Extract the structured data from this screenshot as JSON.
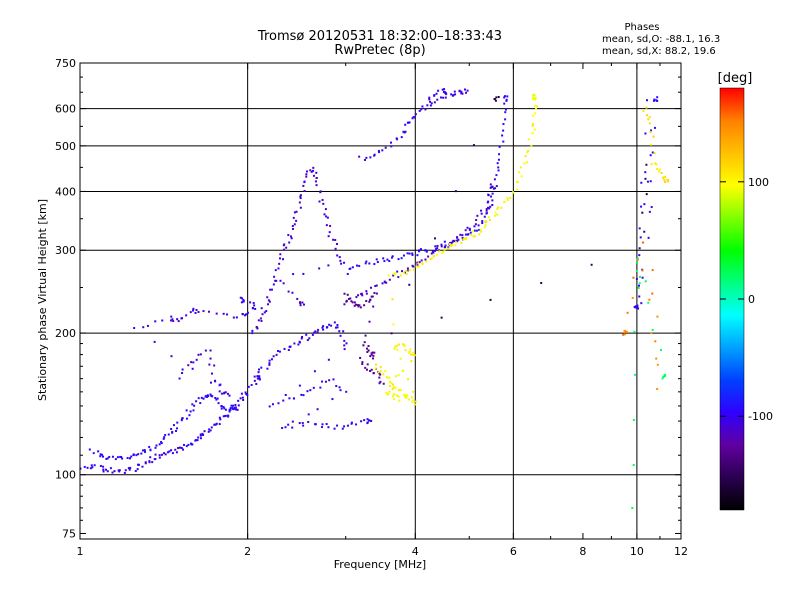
{
  "chart_data": {
    "type": "scatter",
    "title": "Tromsø 20120531 18:32:00–18:33:43",
    "subtitle": "RwPretec (8p)",
    "xlabel": "Frequency [MHz]",
    "ylabel": "Stationary phase Virtual Height [km]",
    "x_scale": "log",
    "y_scale": "log",
    "xlim": [
      1,
      12
    ],
    "ylim": [
      73,
      750
    ],
    "x_ticks": [
      1,
      2,
      4,
      6,
      8,
      10,
      12
    ],
    "y_ticks": [
      75,
      100,
      200,
      300,
      400,
      500,
      600,
      750
    ],
    "grid_x": [
      1,
      2,
      4,
      6,
      10
    ],
    "grid_y": [
      100,
      200,
      300,
      400,
      500,
      600
    ],
    "grid": true,
    "phases_box": {
      "title": "Phases",
      "line1": "mean, sd,O: -88.1, 16.3",
      "line2": "mean, sd,X:  88.2, 19.6"
    },
    "colorbar": {
      "label": "[deg]",
      "range": [
        -180,
        180
      ],
      "ticks": [
        100,
        0,
        -100
      ],
      "colors": [
        "#000000",
        "#2a0050",
        "#6000a0",
        "#3000ff",
        "#0040ff",
        "#00a0ff",
        "#00ffff",
        "#00ff80",
        "#00ff00",
        "#80ff00",
        "#ffff00",
        "#ffc000",
        "#ff8000",
        "#ff0000"
      ]
    },
    "point_color": "phase [deg]",
    "clusters": [
      {
        "phase": -100,
        "pts": [
          [
            1.0,
            102
          ],
          [
            1.05,
            104
          ],
          [
            1.1,
            103
          ],
          [
            1.15,
            102
          ],
          [
            1.2,
            102
          ],
          [
            1.25,
            103
          ],
          [
            1.3,
            105
          ],
          [
            1.35,
            108
          ],
          [
            1.4,
            110
          ],
          [
            1.45,
            111
          ],
          [
            1.5,
            113
          ],
          [
            1.55,
            115
          ],
          [
            1.6,
            118
          ],
          [
            1.65,
            121
          ],
          [
            1.7,
            124
          ],
          [
            1.75,
            127
          ],
          [
            1.8,
            131
          ],
          [
            1.85,
            135
          ],
          [
            1.9,
            140
          ],
          [
            1.95,
            145
          ],
          [
            2.0,
            151
          ],
          [
            2.1,
            160
          ]
        ]
      },
      {
        "phase": -95,
        "pts": [
          [
            1.05,
            112
          ],
          [
            1.1,
            110
          ],
          [
            1.15,
            108
          ],
          [
            1.2,
            108
          ],
          [
            1.25,
            110
          ],
          [
            1.3,
            112
          ],
          [
            1.35,
            114
          ],
          [
            1.4,
            117
          ],
          [
            1.45,
            122
          ],
          [
            1.5,
            127
          ],
          [
            1.55,
            133
          ],
          [
            1.6,
            140
          ],
          [
            1.65,
            146
          ],
          [
            1.7,
            148
          ],
          [
            1.75,
            145
          ],
          [
            1.8,
            140
          ],
          [
            1.85,
            138
          ],
          [
            1.9,
            139
          ]
        ]
      },
      {
        "phase": -105,
        "pts": [
          [
            1.5,
            160
          ],
          [
            1.6,
            175
          ],
          [
            1.7,
            183
          ],
          [
            1.75,
            160
          ],
          [
            1.8,
            150
          ],
          [
            1.85,
            148
          ],
          [
            1.25,
            203
          ],
          [
            1.45,
            215
          ],
          [
            1.5,
            213
          ],
          [
            1.6,
            222
          ],
          [
            1.65,
            225
          ],
          [
            1.9,
            215
          ],
          [
            2.0,
            220
          ],
          [
            2.1,
            228
          ],
          [
            1.95,
            235
          ]
        ]
      },
      {
        "phase": -110,
        "pts": [
          [
            2.05,
            200
          ],
          [
            2.1,
            210
          ],
          [
            2.15,
            225
          ],
          [
            2.2,
            245
          ],
          [
            2.25,
            265
          ],
          [
            2.3,
            290
          ],
          [
            2.35,
            310
          ],
          [
            2.4,
            330
          ],
          [
            2.45,
            360
          ],
          [
            2.5,
            390
          ],
          [
            2.55,
            420
          ],
          [
            2.6,
            450
          ],
          [
            2.65,
            430
          ],
          [
            2.7,
            395
          ],
          [
            2.75,
            360
          ],
          [
            2.8,
            330
          ],
          [
            2.9,
            300
          ],
          [
            2.95,
            280
          ],
          [
            2.3,
            260
          ],
          [
            2.5,
            230
          ]
        ]
      },
      {
        "phase": -100,
        "pts": [
          [
            2.05,
            160
          ],
          [
            2.15,
            170
          ],
          [
            2.25,
            180
          ],
          [
            2.35,
            185
          ],
          [
            2.45,
            190
          ],
          [
            2.55,
            195
          ],
          [
            2.65,
            200
          ],
          [
            2.75,
            205
          ],
          [
            2.85,
            210
          ],
          [
            2.95,
            200
          ],
          [
            3.0,
            185
          ],
          [
            2.2,
            140
          ],
          [
            2.4,
            145
          ],
          [
            2.6,
            150
          ],
          [
            2.8,
            160
          ],
          [
            3.0,
            150
          ],
          [
            2.3,
            125
          ],
          [
            2.5,
            128
          ],
          [
            2.7,
            128
          ],
          [
            2.9,
            126
          ],
          [
            3.1,
            128
          ],
          [
            3.3,
            130
          ]
        ]
      },
      {
        "phase": -95,
        "pts": [
          [
            3.0,
            270
          ],
          [
            3.2,
            280
          ],
          [
            3.4,
            283
          ],
          [
            3.6,
            288
          ],
          [
            3.8,
            292
          ],
          [
            4.0,
            296
          ],
          [
            4.2,
            300
          ],
          [
            4.4,
            305
          ],
          [
            4.6,
            310
          ],
          [
            4.8,
            318
          ],
          [
            5.0,
            325
          ],
          [
            5.2,
            335
          ],
          [
            5.4,
            355
          ],
          [
            5.5,
            385
          ],
          [
            5.6,
            430
          ],
          [
            5.7,
            480
          ],
          [
            5.75,
            560
          ],
          [
            5.8,
            630
          ]
        ]
      },
      {
        "phase": -110,
        "pts": [
          [
            3.0,
            230
          ],
          [
            3.15,
            238
          ],
          [
            3.3,
            245
          ],
          [
            3.5,
            255
          ],
          [
            3.7,
            265
          ],
          [
            3.9,
            275
          ],
          [
            4.1,
            285
          ],
          [
            4.3,
            295
          ],
          [
            4.5,
            305
          ],
          [
            4.7,
            315
          ],
          [
            4.9,
            325
          ],
          [
            5.1,
            340
          ],
          [
            5.3,
            360
          ],
          [
            5.4,
            380
          ],
          [
            5.5,
            410
          ]
        ]
      },
      {
        "phase": -105,
        "pts": [
          [
            3.2,
            470
          ],
          [
            3.4,
            480
          ],
          [
            3.6,
            500
          ],
          [
            3.8,
            530
          ],
          [
            3.9,
            560
          ],
          [
            4.0,
            585
          ],
          [
            4.2,
            610
          ],
          [
            4.4,
            625
          ],
          [
            4.6,
            640
          ],
          [
            4.8,
            650
          ],
          [
            5.0,
            655
          ],
          [
            4.2,
            635
          ],
          [
            4.5,
            652
          ]
        ]
      },
      {
        "phase": -130,
        "pts": [
          [
            3.0,
            240
          ],
          [
            3.1,
            232
          ],
          [
            3.2,
            228
          ],
          [
            3.3,
            235
          ],
          [
            3.4,
            242
          ],
          [
            3.2,
            175
          ],
          [
            3.3,
            168
          ],
          [
            3.4,
            165
          ],
          [
            3.5,
            155
          ],
          [
            3.25,
            190
          ],
          [
            3.35,
            180
          ]
        ]
      },
      {
        "phase": 100,
        "pts": [
          [
            3.4,
            170
          ],
          [
            3.5,
            165
          ],
          [
            3.6,
            158
          ],
          [
            3.7,
            152
          ],
          [
            3.8,
            148
          ],
          [
            3.9,
            145
          ],
          [
            4.0,
            142
          ],
          [
            3.7,
            185
          ],
          [
            3.8,
            188
          ],
          [
            3.9,
            183
          ],
          [
            4.0,
            180
          ],
          [
            3.55,
            150
          ],
          [
            3.65,
            147
          ],
          [
            3.75,
            145
          ],
          [
            3.6,
            265
          ],
          [
            3.8,
            268
          ],
          [
            4.0,
            275
          ],
          [
            4.2,
            285
          ],
          [
            4.4,
            295
          ],
          [
            4.6,
            305
          ],
          [
            4.8,
            312
          ],
          [
            5.0,
            320
          ],
          [
            5.2,
            330
          ],
          [
            5.4,
            345
          ],
          [
            5.6,
            360
          ],
          [
            5.8,
            380
          ],
          [
            6.0,
            400
          ],
          [
            6.2,
            440
          ],
          [
            6.4,
            480
          ],
          [
            6.5,
            540
          ],
          [
            6.6,
            600
          ],
          [
            6.55,
            635
          ]
        ]
      },
      {
        "phase": -100,
        "pts": [
          [
            10.1,
            420
          ],
          [
            10.0,
            230
          ],
          [
            10.1,
            225
          ],
          [
            10.2,
            270
          ],
          [
            10.5,
            620
          ],
          [
            10.6,
            320
          ],
          [
            10.8,
            630
          ]
        ]
      },
      {
        "phase": 110,
        "pts": [
          [
            10.3,
            600
          ],
          [
            10.6,
            560
          ],
          [
            10.7,
            460
          ],
          [
            11.0,
            440
          ],
          [
            11.3,
            420
          ]
        ]
      },
      {
        "phase": 20,
        "pts": [
          [
            9.8,
            85
          ],
          [
            10.0,
            250
          ],
          [
            10.1,
            290
          ],
          [
            11.2,
            162
          ]
        ]
      },
      {
        "phase": 150,
        "pts": [
          [
            10.7,
            270
          ],
          [
            10.9,
            152
          ],
          [
            10.2,
            310
          ],
          [
            9.5,
            200
          ]
        ]
      },
      {
        "phase": -150,
        "pts": [
          [
            10.5,
            460
          ],
          [
            10.2,
            305
          ],
          [
            3.6,
            200
          ],
          [
            5.6,
            630
          ]
        ]
      }
    ]
  }
}
